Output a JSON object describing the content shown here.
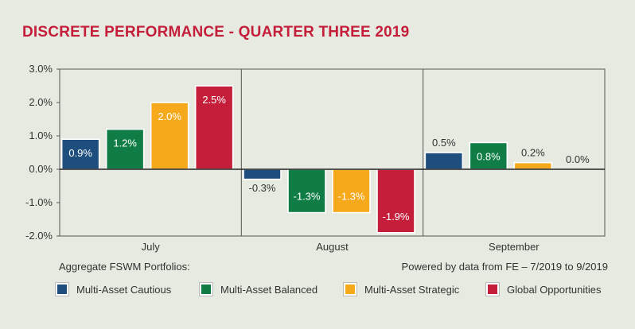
{
  "title": "DISCRETE PERFORMANCE - QUARTER THREE 2019",
  "notes": {
    "left": "Aggregate FSWM Portfolios:",
    "right": "Powered by data from FE – 7/2019 to 9/2019"
  },
  "colors": {
    "background": "#e6eae1",
    "title": "#c41e3a",
    "cautious": "#1d4e7e",
    "balanced": "#0f7d45",
    "strategic": "#f6a91a",
    "global": "#c41e3a"
  },
  "chart_data": {
    "type": "bar",
    "title": "DISCRETE PERFORMANCE - QUARTER THREE 2019",
    "categories": [
      "July",
      "August",
      "September"
    ],
    "series": [
      {
        "name": "Multi-Asset Cautious",
        "values": [
          0.9,
          -0.3,
          0.5
        ],
        "labels": [
          "0.9%",
          "-0.3%",
          "0.5%"
        ]
      },
      {
        "name": "Multi-Asset Balanced",
        "values": [
          1.2,
          -1.3,
          0.8
        ],
        "labels": [
          "1.2%",
          "-1.3%",
          "0.8%"
        ]
      },
      {
        "name": "Multi-Asset Strategic",
        "values": [
          2.0,
          -1.3,
          0.2
        ],
        "labels": [
          "2.0%",
          "-1.3%",
          "0.2%"
        ]
      },
      {
        "name": "Global Opportunities",
        "values": [
          2.5,
          -1.9,
          0.0
        ],
        "labels": [
          "2.5%",
          "-1.9%",
          "0.0%"
        ]
      }
    ],
    "ylim": [
      -2.0,
      3.0
    ],
    "yticks": [
      "3.0%",
      "2.0%",
      "1.0%",
      "0.0%",
      "-1.0%",
      "-2.0%"
    ],
    "xlabel": "",
    "ylabel": "",
    "legend_position": "bottom"
  }
}
